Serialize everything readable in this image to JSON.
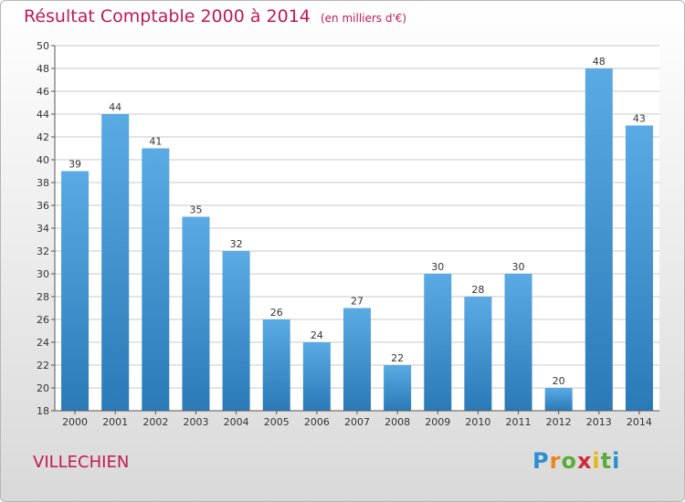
{
  "chart_data": {
    "type": "bar",
    "title": "Résultat Comptable 2000 à 2014",
    "subtitle": "(en milliers d'€)",
    "categories": [
      "2000",
      "2001",
      "2002",
      "2003",
      "2004",
      "2005",
      "2006",
      "2007",
      "2008",
      "2009",
      "2010",
      "2011",
      "2012",
      "2013",
      "2014"
    ],
    "values": [
      39,
      44,
      41,
      35,
      32,
      26,
      24,
      27,
      22,
      30,
      28,
      30,
      20,
      48,
      43
    ],
    "ylim": [
      18,
      50
    ],
    "ytick_step": 2,
    "grid": true,
    "xlabel": "",
    "ylabel": ""
  },
  "location": "VILLECHIEN",
  "logo": {
    "letters": [
      "P",
      "r",
      "o",
      "x",
      "i",
      "t",
      "i"
    ],
    "colors": [
      "#2a8fd1",
      "#e8871e",
      "#59ac3d",
      "#d02a3a",
      "#e8b512",
      "#59ac3d",
      "#2a8fd1"
    ]
  },
  "colors": {
    "title": "#c0185a",
    "bar_light": "#5aaae4",
    "bar_dark": "#2a7ab8",
    "grid": "#c8c8c8"
  }
}
